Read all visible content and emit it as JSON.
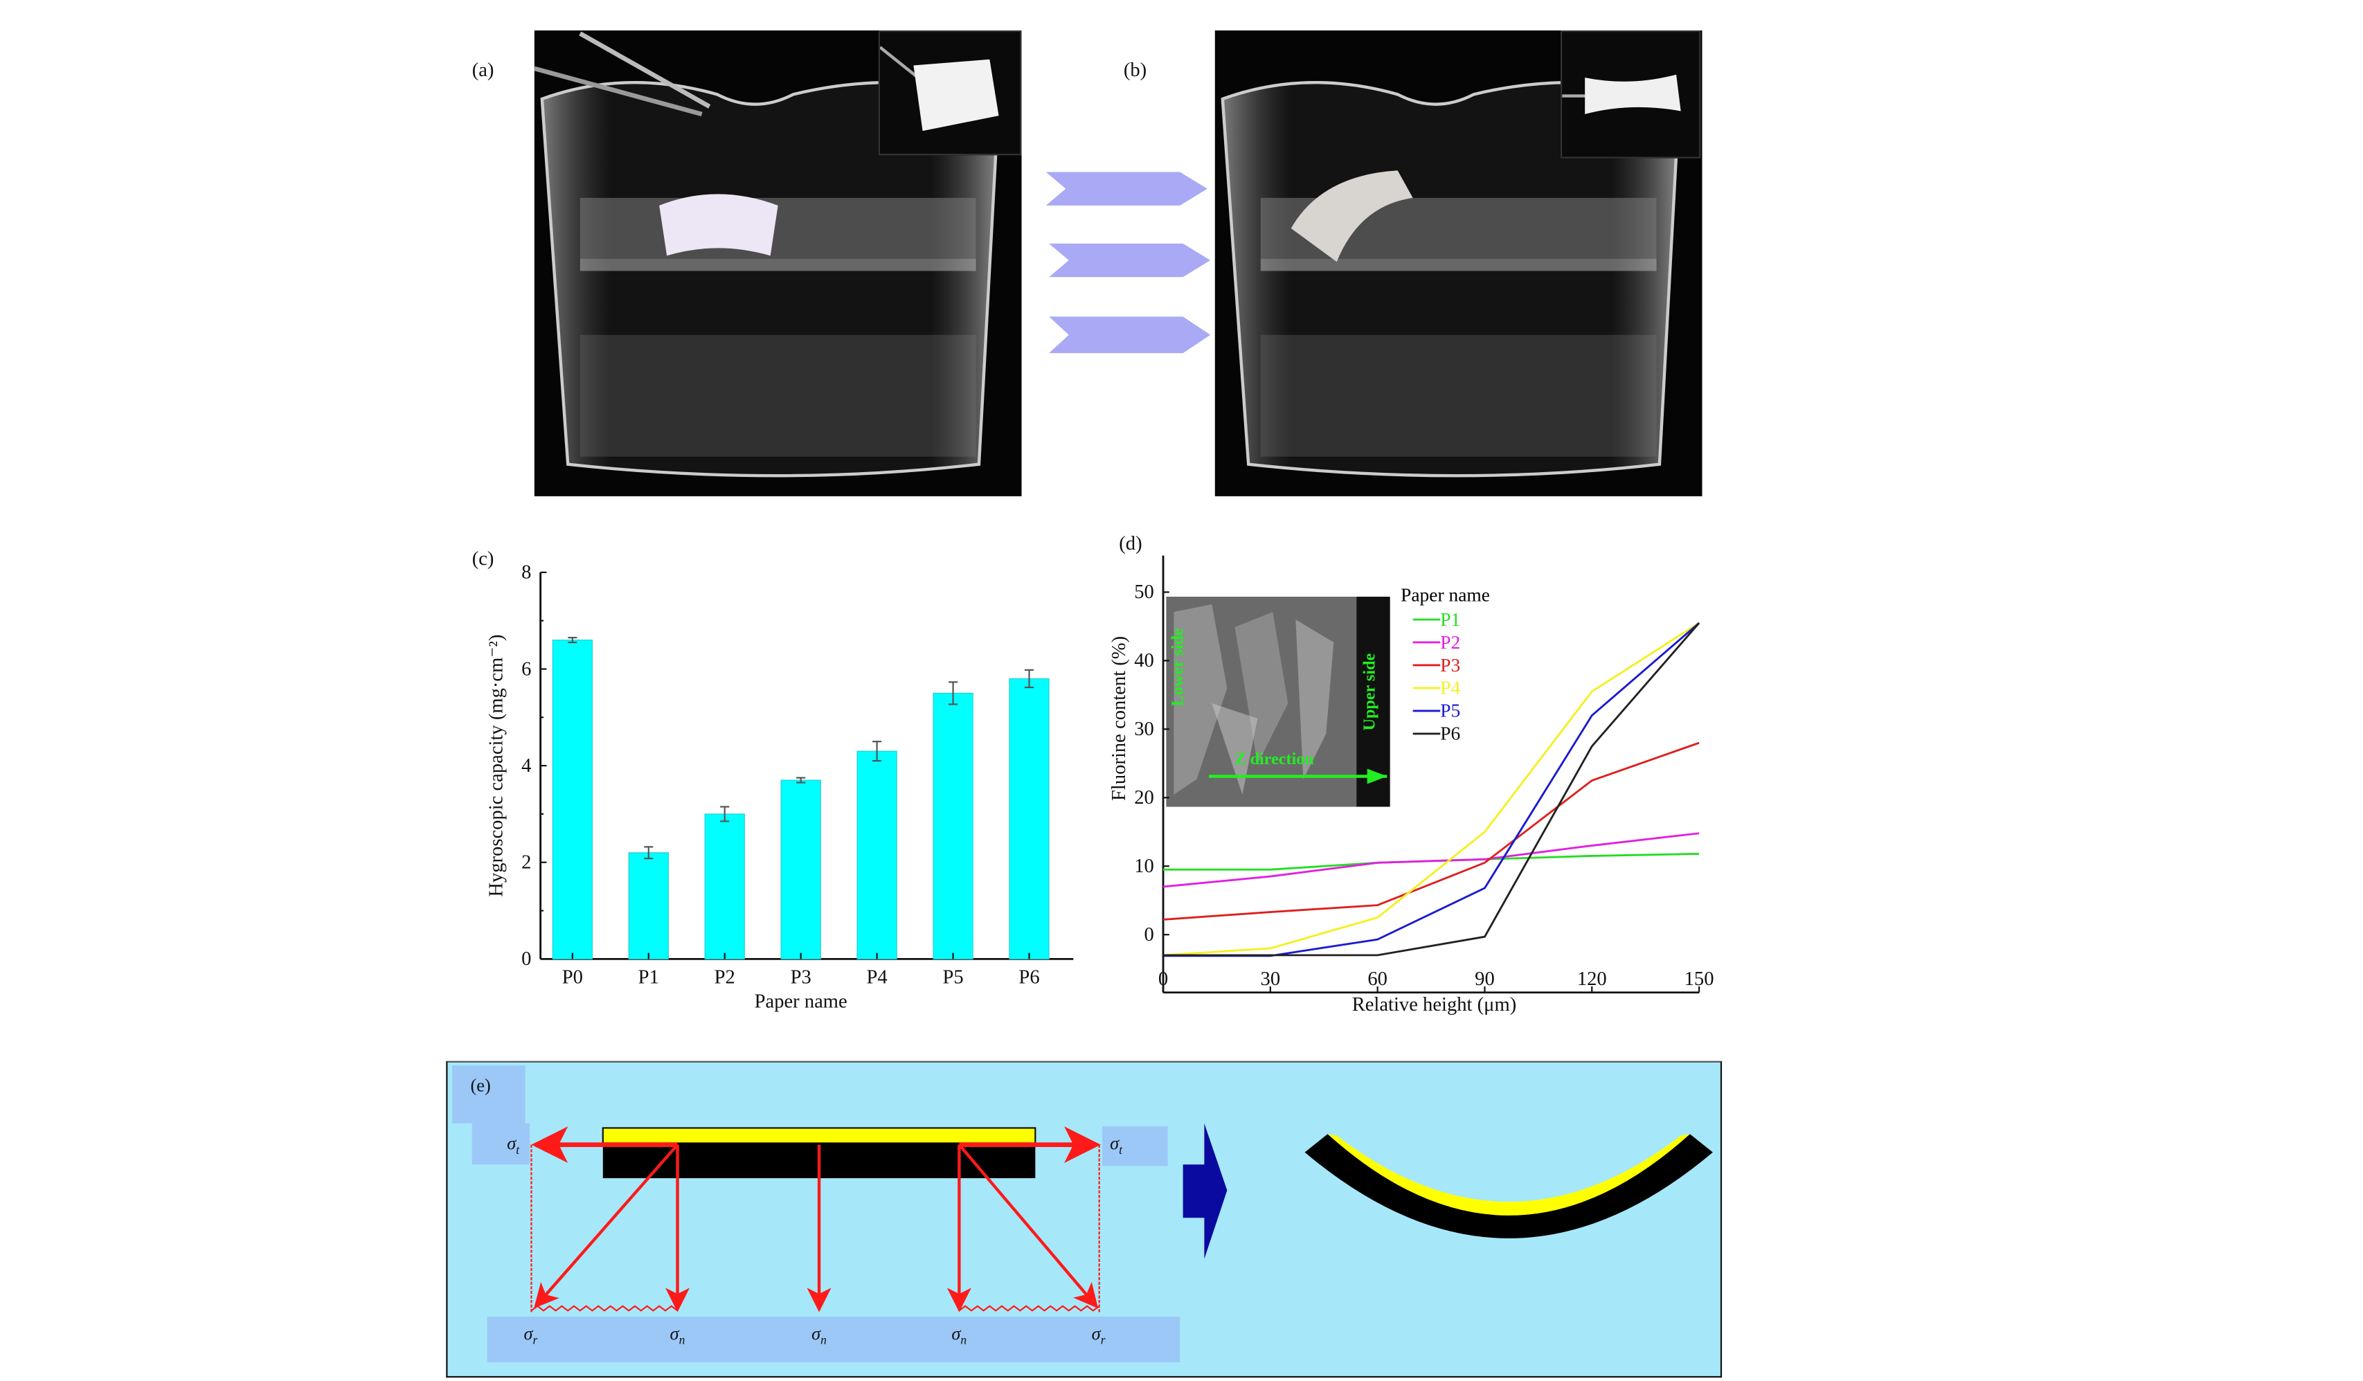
{
  "panels": {
    "a": {
      "label": "(a)"
    },
    "b": {
      "label": "(b)"
    },
    "e": {
      "label": "(e)",
      "sigma_t_left": {
        "symbol": "σ",
        "sub": "t"
      },
      "sigma_t_right": {
        "symbol": "σ",
        "sub": "t"
      },
      "bottom": [
        {
          "symbol": "σ",
          "sub": "r"
        },
        {
          "symbol": "σ",
          "sub": "n"
        },
        {
          "symbol": "σ",
          "sub": "n"
        },
        {
          "symbol": "σ",
          "sub": "n"
        },
        {
          "symbol": "σ",
          "sub": "r"
        }
      ],
      "colors": {
        "background": "#a6e8fa",
        "label_box": "#9cc8f7",
        "coating": "#ffff00",
        "paper": "#000000",
        "stress": "#ff1a1a",
        "arrow": "#0a0aa0"
      }
    },
    "arrows_color": "#a9a9f5"
  },
  "chart_data": [
    {
      "panel_label": "(c)",
      "type": "bar",
      "categories": [
        "P0",
        "P1",
        "P2",
        "P3",
        "P4",
        "P5",
        "P6"
      ],
      "values": [
        6.6,
        2.2,
        3.0,
        3.7,
        4.3,
        5.5,
        5.8
      ],
      "errors": [
        0.05,
        0.12,
        0.15,
        0.05,
        0.2,
        0.23,
        0.18
      ],
      "xlabel": "Paper name",
      "ylabel": "Hygroscopic capacity (mg·cm⁻²)",
      "ylim": [
        0,
        8
      ],
      "yticks": [
        0,
        2,
        4,
        6,
        8
      ],
      "bar_color": "#00ffff",
      "grid": false
    },
    {
      "panel_label": "(d)",
      "type": "line",
      "x": [
        0,
        30,
        60,
        90,
        120,
        150
      ],
      "series": [
        {
          "name": "P1",
          "color": "#22dd22",
          "values": [
            9.5,
            9.5,
            10.5,
            11,
            11.5,
            11.8
          ]
        },
        {
          "name": "P2",
          "color": "#e020e0",
          "values": [
            7,
            8.5,
            10.5,
            11,
            13,
            14.8
          ]
        },
        {
          "name": "P3",
          "color": "#dd1f1f",
          "values": [
            2.2,
            3.3,
            4.3,
            10.5,
            22.5,
            28
          ]
        },
        {
          "name": "P4",
          "color": "#f5f020",
          "values": [
            -3,
            -2,
            2.5,
            15,
            35.5,
            45.5
          ]
        },
        {
          "name": "P5",
          "color": "#1a1ad0",
          "values": [
            -3.2,
            -3.2,
            -0.7,
            6.8,
            32,
            45.5
          ]
        },
        {
          "name": "P6",
          "color": "#222222",
          "values": [
            -3,
            -3,
            -3,
            -0.3,
            27.5,
            45.5
          ]
        }
      ],
      "legend_title": "Paper name",
      "legend_position": "top-center",
      "xlabel": "Relative height (μm)",
      "ylabel": "Fluorine content (%)",
      "xlim": [
        0,
        150
      ],
      "ylim": [
        -3.2,
        55
      ],
      "xticks": [
        0,
        30,
        60,
        90,
        120,
        150
      ],
      "yticks": [
        0,
        10,
        20,
        30,
        40,
        50
      ],
      "inset": {
        "lower_side": "Lower side",
        "upper_side": "Upper side",
        "z_direction": "Z direction"
      },
      "grid": false
    }
  ]
}
